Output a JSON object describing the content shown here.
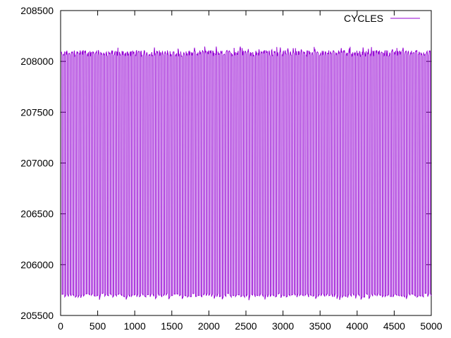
{
  "chart_data": {
    "type": "line",
    "title": "",
    "xlabel": "",
    "ylabel": "",
    "xlim": [
      0,
      5000
    ],
    "ylim": [
      205500,
      208500
    ],
    "xticks": [
      0,
      500,
      1000,
      1500,
      2000,
      2500,
      3000,
      3500,
      4000,
      4500,
      5000
    ],
    "yticks": [
      205500,
      206000,
      206500,
      207000,
      207500,
      208000,
      208500
    ],
    "grid": false,
    "legend": {
      "placement": "top-right",
      "entries": [
        "CYCLES"
      ]
    },
    "series": [
      {
        "name": "CYCLES",
        "color": "#9400d3",
        "pattern": "oscillation between low and high level",
        "period": 36,
        "low": 205700,
        "high": 208080,
        "x_start": 0,
        "x_end": 5000
      }
    ]
  }
}
